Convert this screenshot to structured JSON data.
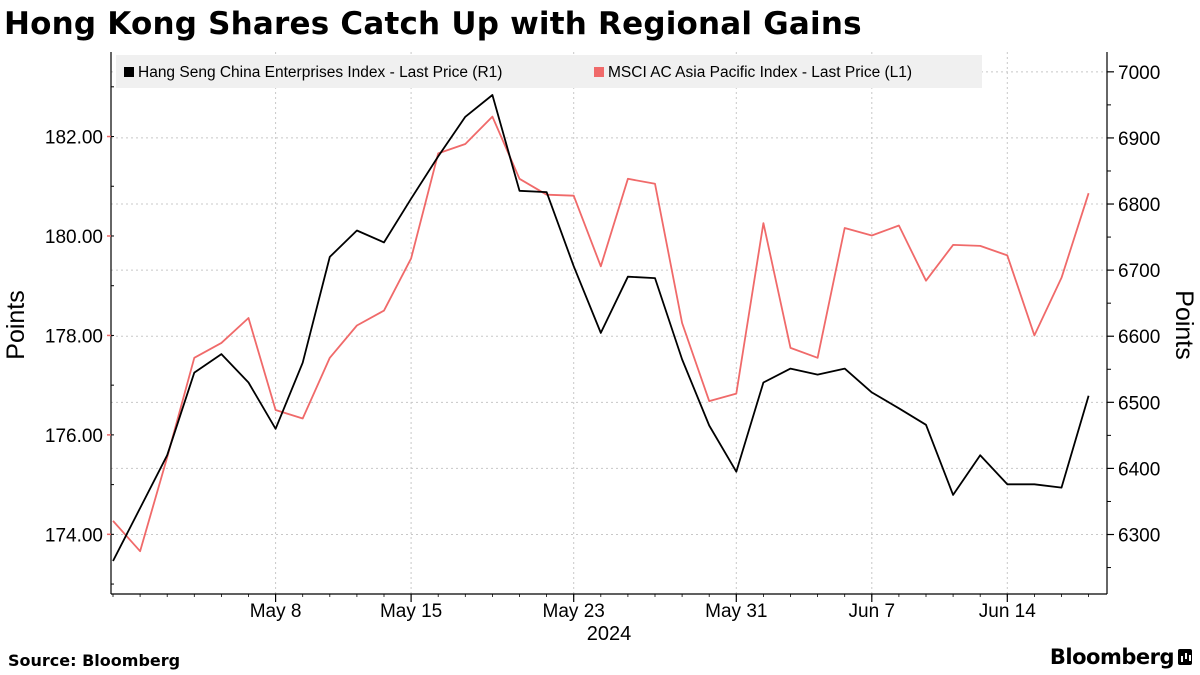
{
  "title": "Hong Kong Shares Catch Up with Regional Gains",
  "source": "Source: Bloomberg",
  "brand": "Bloomberg",
  "chart_data": {
    "type": "line",
    "title": "Hong Kong Shares Catch Up with Regional Gains",
    "xlabel": "2024",
    "ylabel_left": "Points",
    "ylabel_right": "Points",
    "x_ticks": [
      {
        "label": "May 8",
        "index": 6
      },
      {
        "label": "May 15",
        "index": 11
      },
      {
        "label": "May 23",
        "index": 17
      },
      {
        "label": "May 31",
        "index": 23
      },
      {
        "label": "Jun 7",
        "index": 28
      },
      {
        "label": "Jun 14",
        "index": 33
      }
    ],
    "y_left": {
      "range": [
        172.8,
        183.7
      ],
      "ticks": [
        174,
        176,
        178,
        180,
        182
      ],
      "tick_labels": [
        "174.00",
        "176.00",
        "178.00",
        "180.00",
        "182.00"
      ]
    },
    "y_right": {
      "range": [
        6210,
        7030
      ],
      "ticks": [
        6300,
        6400,
        6500,
        6600,
        6700,
        6800,
        6900,
        7000
      ],
      "tick_labels": [
        "6300",
        "6400",
        "6500",
        "6600",
        "6700",
        "6800",
        "6900",
        "7000"
      ]
    },
    "legend": {
      "position": "top-left"
    },
    "colors": {
      "hsce": "#000000",
      "msci": "#f06a6a",
      "grid": "#c8c8c8"
    },
    "series": [
      {
        "name": "Hang Seng China Enterprises Index - Last Price (R1)",
        "key": "hsce",
        "axis": "right",
        "values": [
          6260,
          6340,
          6420,
          6545,
          6573,
          6530,
          6460,
          6560,
          6720,
          6760,
          6742,
          6808,
          6872,
          6932,
          6965,
          6820,
          6818,
          6706,
          6605,
          6690,
          6688,
          6565,
          6465,
          6395,
          6530,
          6551,
          6542,
          6551,
          6515,
          6491,
          6466,
          6360,
          6420,
          6376,
          6376,
          6371,
          6510
        ]
      },
      {
        "name": "MSCI AC Asia Pacific Index - Last Price (L1)",
        "key": "msci",
        "axis": "left",
        "values": [
          174.27,
          173.66,
          175.55,
          177.55,
          177.85,
          178.35,
          176.5,
          176.33,
          177.55,
          178.2,
          178.5,
          179.55,
          181.66,
          181.85,
          182.4,
          181.15,
          180.83,
          180.81,
          179.39,
          181.15,
          181.05,
          178.25,
          176.68,
          176.83,
          180.26,
          177.75,
          177.55,
          180.16,
          180.01,
          180.21,
          179.1,
          179.82,
          179.8,
          179.61,
          178.0,
          179.16,
          180.86
        ]
      }
    ]
  }
}
